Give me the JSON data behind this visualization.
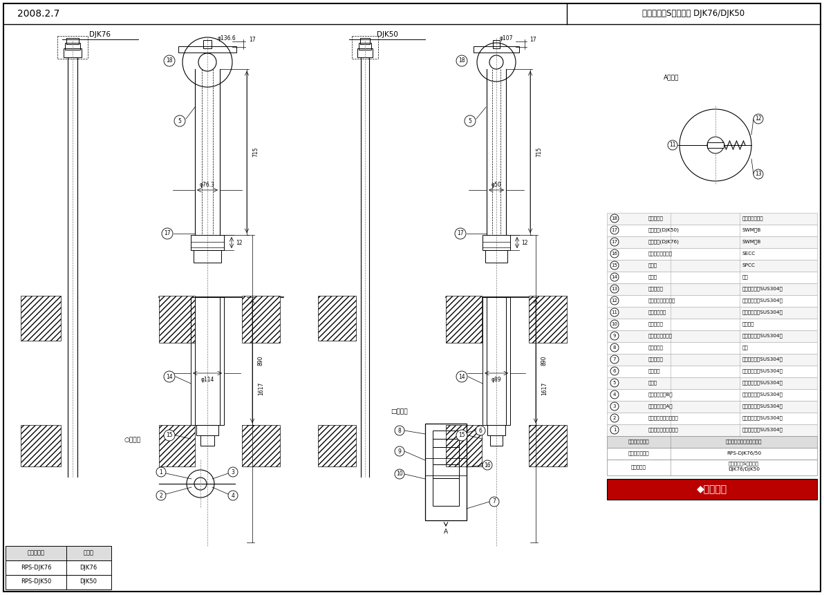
{
  "title_left": "2008.2.7",
  "title_right": "レコボールSシリーズ DJK76/DJK50",
  "bg_color": "#ffffff",
  "line_color": "#000000",
  "parts_table": {
    "rows": [
      [
        "18",
        "反射シール",
        "アクリルシート"
      ],
      [
        "17",
        "鋼フック(DJK50)",
        "SWM－B"
      ],
      [
        "17",
        "鋼フック(DJK76)",
        "SWM－B"
      ],
      [
        "16",
        "抜け止めプレート",
        "SECC"
      ],
      [
        "15",
        "底　蓋",
        "SPCC"
      ],
      [
        "14",
        "外　筒",
        "塩ビ"
      ],
      [
        "13",
        "スプリング",
        "ステンレス（SUS304）"
      ],
      [
        "12",
        "プランジャーケース",
        "ステンレス（SUS304）"
      ],
      [
        "11",
        "プランジャー",
        "ステンレス（SUS304）"
      ],
      [
        "10",
        "ストッパー",
        "ナイロン"
      ],
      [
        "9",
        "ストッパーリング",
        "ステンレス（SUS304）"
      ],
      [
        "8",
        "スペーサー",
        "塩ビ"
      ],
      [
        "7",
        "ケーシング",
        "ステンレス（SUS304）"
      ],
      [
        "6",
        "キャップ",
        "ステンレス（SUS304）"
      ],
      [
        "5",
        "ポール",
        "ステンレス（SUS304）"
      ],
      [
        "4",
        "固定金具　（B）",
        "ステンレス（SUS304）"
      ],
      [
        "3",
        "固定金具　（A）",
        "ステンレス（SUS304）"
      ],
      [
        "2",
        "ヘッドキャップ（下）",
        "ステンレス（SUS304）"
      ],
      [
        "1",
        "ヘッドキャップ（上）",
        "ステンレス（SUS304）"
      ]
    ]
  },
  "bottom_table": {
    "col1_header": "型式コード",
    "col2_header": "品　名",
    "rows": [
      [
        "RPS-DJK76",
        "DJK76"
      ],
      [
        "RPS-DJK50",
        "DJK50"
      ]
    ]
  },
  "label_djk76": "DJK76",
  "label_djk50": "DJK50",
  "dim_136_6": "φ136.6",
  "dim_17_top": "17",
  "dim_107": "φ107",
  "dim_76_3": "φ76.3",
  "dim_50": "φ50",
  "dim_715": "715",
  "dim_12": "12",
  "dim_1617": "1617",
  "dim_890": "890",
  "dim_114": "φ114",
  "dim_89": "φ89",
  "section_circle": "○断面図",
  "section_rect": "□断面図",
  "view_a": "A矢視図",
  "logo_text": "◆四国化成",
  "footer_rows": [
    [
      "主　要　部　材",
      "仕　様（材　質・塗　装）"
    ],
    [
      "型　式　コード",
      "RPS-DJK76/50"
    ],
    [
      "品　品　名",
      "レコボールSシリーズ\nDJK76/DJK50"
    ]
  ]
}
